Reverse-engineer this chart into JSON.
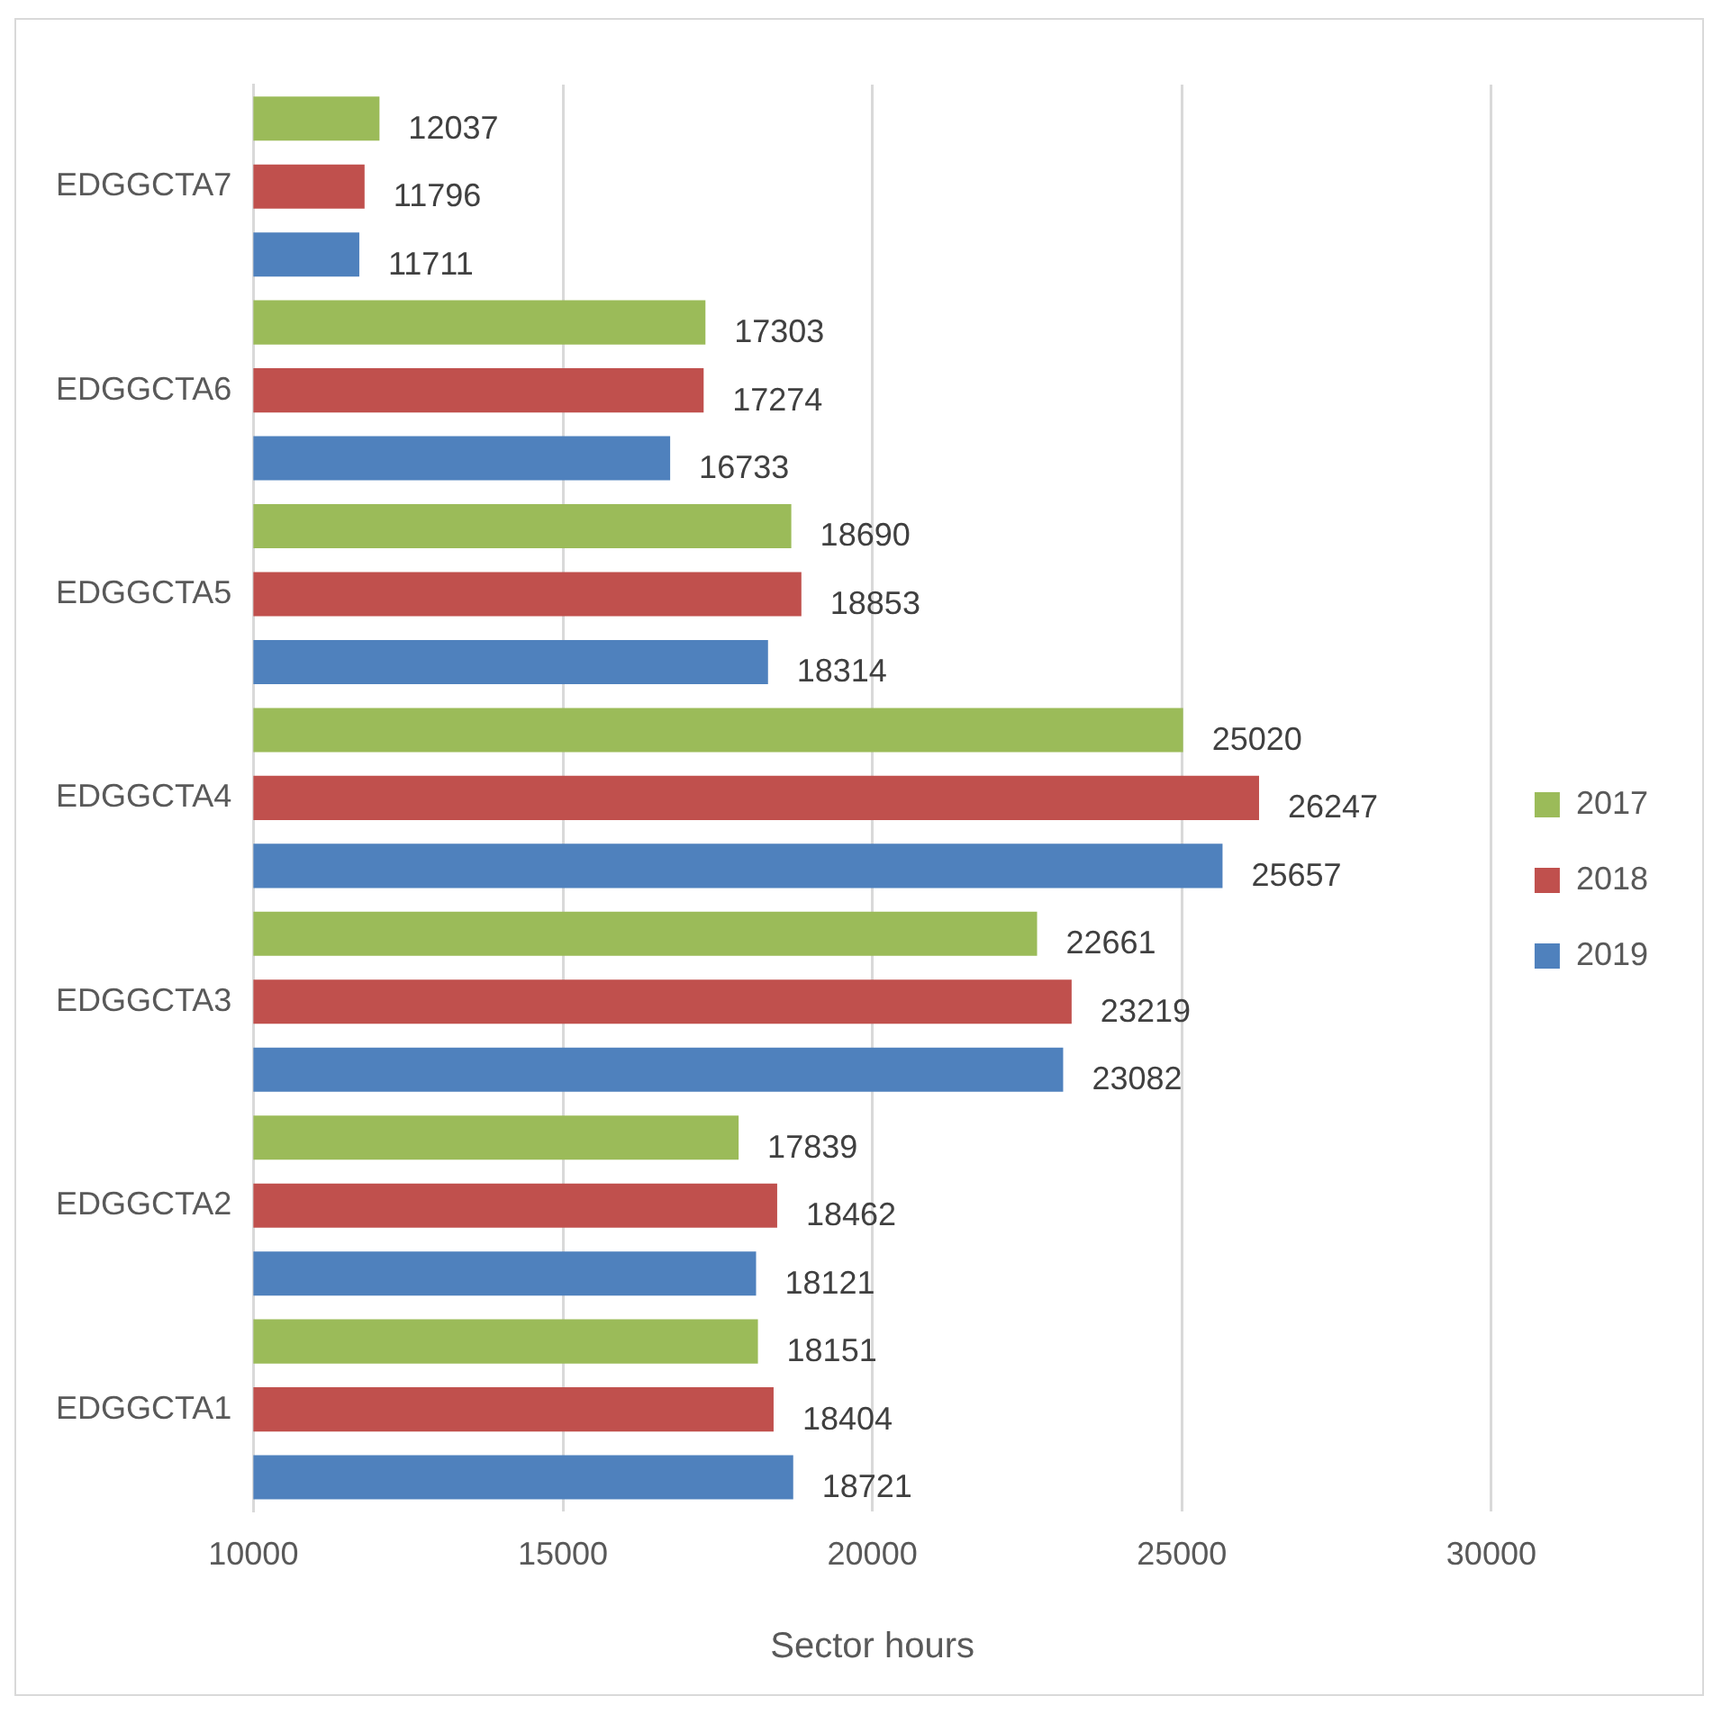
{
  "chart_data": {
    "type": "bar",
    "orientation": "horizontal",
    "xlabel": "Sector hours",
    "categories": [
      "EDGGCTA7",
      "EDGGCTA6",
      "EDGGCTA5",
      "EDGGCTA4",
      "EDGGCTA3",
      "EDGGCTA2",
      "EDGGCTA1"
    ],
    "series": [
      {
        "name": "2017",
        "color": "#9bbb59",
        "values": [
          12037,
          17303,
          18690,
          25020,
          22661,
          17839,
          18151
        ]
      },
      {
        "name": "2018",
        "color": "#c0504d",
        "values": [
          11796,
          17274,
          18853,
          26247,
          23219,
          18462,
          18404
        ]
      },
      {
        "name": "2019",
        "color": "#4f81bd",
        "values": [
          11711,
          16733,
          18314,
          25657,
          23082,
          18121,
          18721
        ]
      }
    ],
    "xlim": [
      10000,
      30000
    ],
    "xticks": [
      10000,
      15000,
      20000,
      25000,
      30000
    ],
    "grid": "x",
    "legend": "right",
    "data_labels": true
  }
}
